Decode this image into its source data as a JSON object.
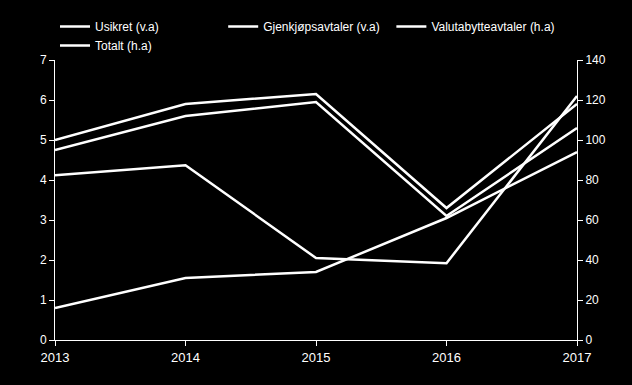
{
  "chart_data": {
    "type": "line",
    "categories": [
      "2013",
      "2014",
      "2015",
      "2016",
      "2017"
    ],
    "series": [
      {
        "name": "Usikret (v.a)",
        "color": "#ffffff",
        "values": [
          4.12,
          4.37,
          2.05,
          1.92,
          6.1
        ]
      },
      {
        "name": "Gjenkjøpsavtaler (v.a)",
        "color": "#ffffff",
        "values": [
          0.8,
          1.55,
          1.7,
          3.05,
          4.7
        ]
      },
      {
        "name": "Valutabytteavtaler (h.a)",
        "color": "#ffffff",
        "values": [
          95,
          112,
          119,
          62,
          106
        ],
        "axis": "y2"
      },
      {
        "name": "Totalt (h.a)",
        "color": "#ffffff",
        "values": [
          100,
          118,
          123,
          66,
          118
        ],
        "axis": "y2"
      }
    ],
    "ylim": [
      0,
      7
    ],
    "yticks": [
      0,
      1,
      2,
      3,
      4,
      5,
      6,
      7
    ],
    "y2lim": [
      0,
      140
    ],
    "y2ticks": [
      0,
      20,
      40,
      60,
      80,
      100,
      120,
      140
    ],
    "grid": false,
    "legend": "top"
  }
}
